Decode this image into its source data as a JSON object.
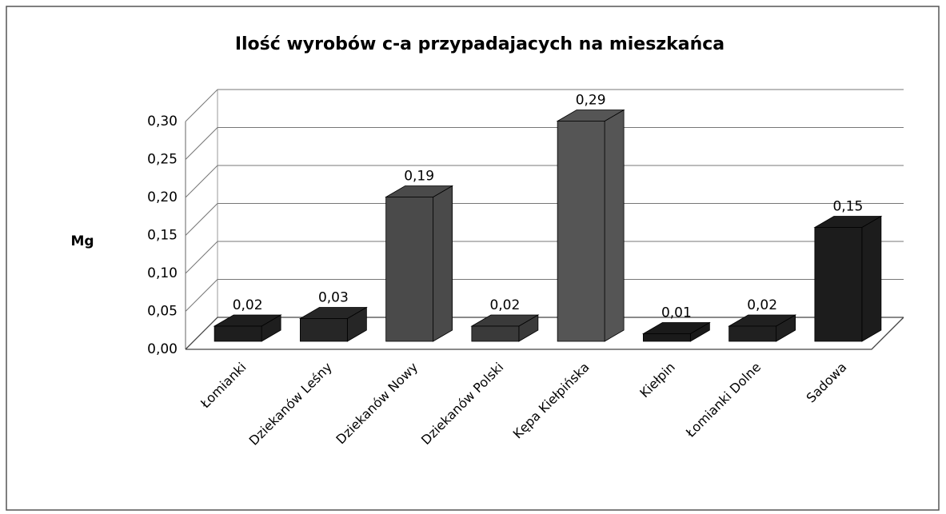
{
  "chart_data": {
    "type": "bar3d",
    "title": "Ilość wyrobów c-a przypadajacych na mieszkańca",
    "ylabel": "Mg",
    "categories": [
      "Łomianki",
      "Dziekanów Leśny",
      "Dziekanów Nowy",
      "Dziekanów Polski",
      "Kępa Kiełpińska",
      "Kiełpin",
      "Łomianki Dolne",
      "Sadowa"
    ],
    "values": [
      0.02,
      0.03,
      0.19,
      0.02,
      0.29,
      0.01,
      0.02,
      0.15
    ],
    "value_labels": [
      "0,02",
      "0,03",
      "0,19",
      "0,02",
      "0,29",
      "0,01",
      "0,02",
      "0,15"
    ],
    "colors": [
      "#1e1e1e",
      "#262626",
      "#4a4a4a",
      "#3a3a3a",
      "#555555",
      "#1a1a1a",
      "#202020",
      "#1c1c1c"
    ],
    "ylim": [
      0,
      0.3
    ],
    "yticks": [
      {
        "value": 0,
        "label": "0,00"
      },
      {
        "value": 0.05,
        "label": "0,05"
      },
      {
        "value": 0.1,
        "label": "0,10"
      },
      {
        "value": 0.15,
        "label": "0,15"
      },
      {
        "value": 0.2,
        "label": "0,20"
      },
      {
        "value": 0.25,
        "label": "0,25"
      },
      {
        "value": 0.3,
        "label": "0,30"
      }
    ],
    "grid": true
  }
}
